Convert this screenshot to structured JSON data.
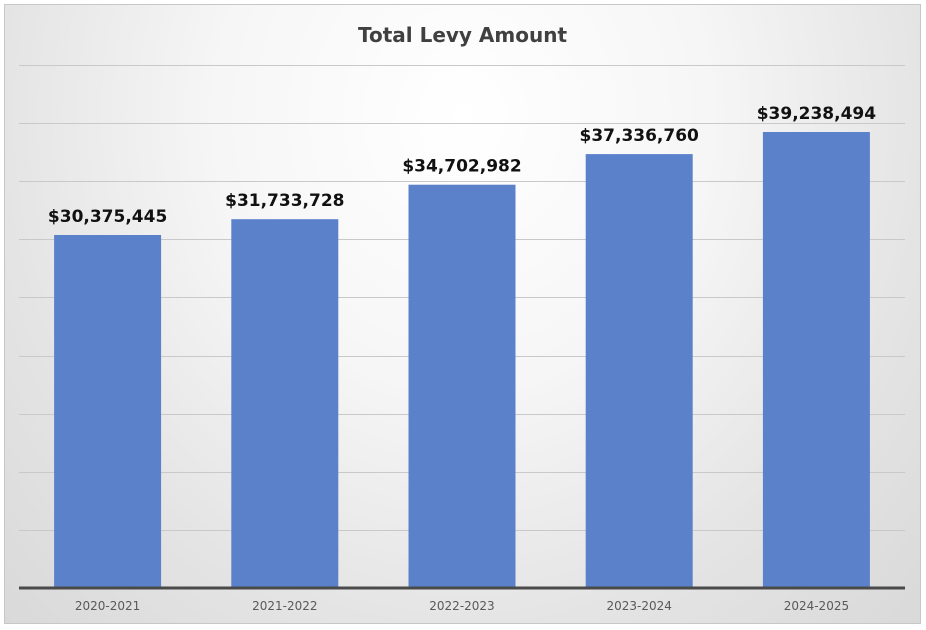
{
  "chart_data": {
    "type": "bar",
    "title": "Total Levy Amount",
    "categories": [
      "2020-2021",
      "2021-2022",
      "2022-2023",
      "2023-2024",
      "2024-2025"
    ],
    "values": [
      30375445,
      31733728,
      34702982,
      37336760,
      39238494
    ],
    "data_labels": [
      "$30,375,445",
      "$31,733,728",
      "$34,702,982",
      "$37,336,760",
      "$39,238,494"
    ],
    "xlabel": "",
    "ylabel": "",
    "ylim": [
      0,
      45000000
    ],
    "y_major_step": 5000000,
    "grid": true,
    "y_axis_labels_visible": false,
    "bar_color": "#5b81cb",
    "legend": "none"
  }
}
